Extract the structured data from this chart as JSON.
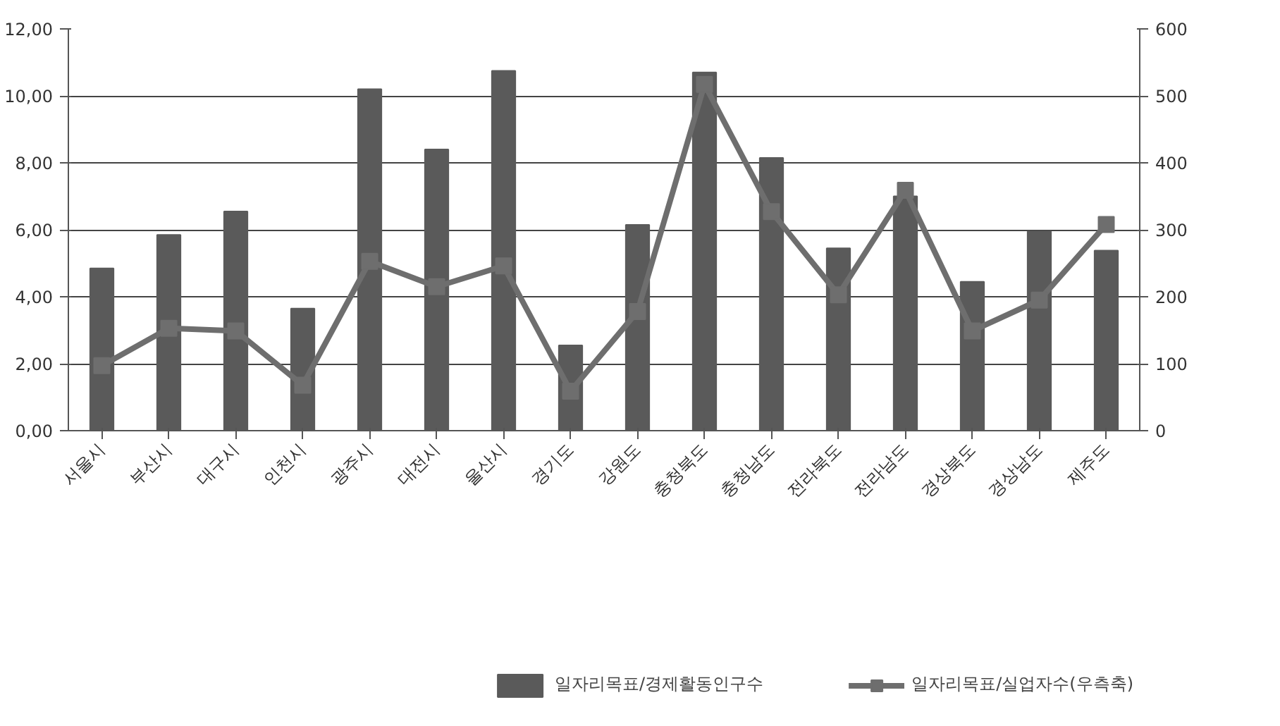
{
  "chart_data": {
    "type": "bar",
    "categories": [
      "서울시",
      "부산시",
      "대구시",
      "인천시",
      "광주시",
      "대전시",
      "울산시",
      "경기도",
      "강원도",
      "충청북도",
      "충청남도",
      "전라북도",
      "전라남도",
      "경상북도",
      "경상남도",
      "제주도"
    ],
    "series": [
      {
        "name": "일자리목표/경제활동인구수",
        "color": "#5a5a5a",
        "values": [
          4.85,
          5.85,
          6.55,
          3.65,
          10.2,
          8.4,
          10.75,
          2.55,
          6.15,
          10.7,
          8.15,
          5.45,
          7.0,
          4.45,
          5.95,
          5.38
        ]
      },
      {
        "name": "일자리목표/실업자수(우측축)",
        "color": "#6e6e6e",
        "type": "line",
        "axis": "y2",
        "marker": "square",
        "values": [
          97,
          153,
          149,
          68,
          253,
          215,
          246,
          59,
          178,
          517,
          327,
          203,
          359,
          149,
          195,
          308
        ]
      }
    ],
    "ylim": [
      0,
      12
    ],
    "yticks": [
      {
        "value": 0,
        "label": "0,00"
      },
      {
        "value": 2,
        "label": "2,00"
      },
      {
        "value": 4,
        "label": "4,00"
      },
      {
        "value": 6,
        "label": "6,00"
      },
      {
        "value": 8,
        "label": "8,00"
      },
      {
        "value": 10,
        "label": "10,00"
      },
      {
        "value": 12,
        "label": "12,00"
      }
    ],
    "y2lim": [
      0,
      600
    ],
    "y2ticks": [
      0,
      100,
      200,
      300,
      400,
      500,
      600
    ],
    "grid": "y",
    "legend": "bottom"
  }
}
